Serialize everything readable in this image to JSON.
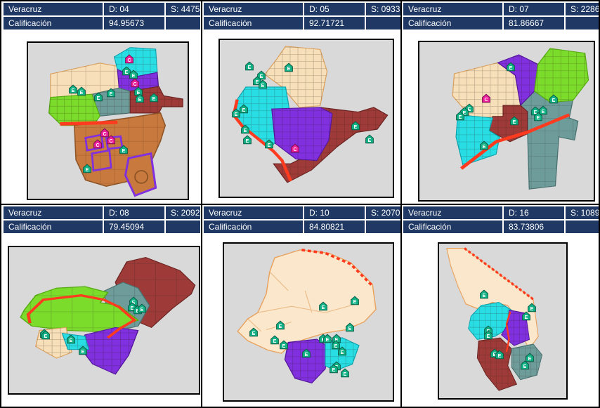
{
  "colors": {
    "header_bg": "#1F3864",
    "header_text": "#FFFFFF",
    "map_bg": "#D9D9D9",
    "district_wheat": "#F6DFB9",
    "district_cyan": "#28DEE4",
    "district_purple": "#8030DE",
    "district_maroon": "#9E3B38",
    "district_tealgray": "#6E9C9B",
    "district_green": "#7CDC2C",
    "district_brown": "#C7793E",
    "boundary_red": "#FF3B1F",
    "marker_e": "#13B286",
    "marker_c": "#EC1F9B"
  },
  "marker_styles": {
    "E": {
      "fill": "#13B286",
      "stroke": "#0B5F47"
    },
    "C": {
      "fill": "#EC1F9B",
      "stroke": "#7C0F52"
    }
  },
  "panels": [
    {
      "city": "Veracruz",
      "district": "D: 04",
      "section": "S: 4475",
      "score_label": "Calificación",
      "score": "94.95673",
      "markers": [
        {
          "t": "C",
          "x": 63.6,
          "y": 11
        },
        {
          "t": "E",
          "x": 61.5,
          "y": 18.5
        },
        {
          "t": "E",
          "x": 66,
          "y": 20.6
        },
        {
          "t": "C",
          "x": 67,
          "y": 26
        },
        {
          "t": "E",
          "x": 69,
          "y": 31.6
        },
        {
          "t": "E",
          "x": 28.4,
          "y": 30
        },
        {
          "t": "E",
          "x": 33.5,
          "y": 31.6
        },
        {
          "t": "E",
          "x": 44,
          "y": 35
        },
        {
          "t": "E",
          "x": 52,
          "y": 32.4
        },
        {
          "t": "E",
          "x": 70,
          "y": 36
        },
        {
          "t": "E",
          "x": 79,
          "y": 35.5
        },
        {
          "t": "C",
          "x": 48,
          "y": 58.3
        },
        {
          "t": "C",
          "x": 52,
          "y": 62.7
        },
        {
          "t": "C",
          "x": 43.7,
          "y": 65.4
        },
        {
          "t": "E",
          "x": 60,
          "y": 68.9
        },
        {
          "t": "E",
          "x": 37,
          "y": 81
        }
      ]
    },
    {
      "city": "Veracruz",
      "district": "D: 05",
      "section": "S: 0933",
      "score_label": "Calificación",
      "score": "92.71721",
      "markers": [
        {
          "t": "E",
          "x": 17,
          "y": 17
        },
        {
          "t": "E",
          "x": 40,
          "y": 18
        },
        {
          "t": "E",
          "x": 24,
          "y": 23
        },
        {
          "t": "E",
          "x": 21.7,
          "y": 26.3
        },
        {
          "t": "E",
          "x": 24.9,
          "y": 28.5
        },
        {
          "t": "E",
          "x": 13.7,
          "y": 44.3
        },
        {
          "t": "E",
          "x": 9.2,
          "y": 47
        },
        {
          "t": "E",
          "x": 14.5,
          "y": 57.5
        },
        {
          "t": "E",
          "x": 16,
          "y": 64
        },
        {
          "t": "E",
          "x": 28.5,
          "y": 67
        },
        {
          "t": "C",
          "x": 43.4,
          "y": 69.3
        },
        {
          "t": "E",
          "x": 78.3,
          "y": 55.3
        },
        {
          "t": "E",
          "x": 86.7,
          "y": 63.6
        }
      ]
    },
    {
      "city": "Veracruz",
      "district": "D: 07",
      "section": "S: 2286",
      "score_label": "Calificación",
      "score": "81.86667",
      "markers": [
        {
          "t": "E",
          "x": 52.4,
          "y": 15.8
        },
        {
          "t": "C",
          "x": 38.4,
          "y": 36
        },
        {
          "t": "E",
          "x": 28.8,
          "y": 42.1
        },
        {
          "t": "E",
          "x": 26,
          "y": 44.3
        },
        {
          "t": "E",
          "x": 23.2,
          "y": 46.9
        },
        {
          "t": "E",
          "x": 66.4,
          "y": 43.9
        },
        {
          "t": "E",
          "x": 70.8,
          "y": 43.4
        },
        {
          "t": "E",
          "x": 77.2,
          "y": 36.4
        },
        {
          "t": "E",
          "x": 68,
          "y": 47.4
        },
        {
          "t": "E",
          "x": 54.4,
          "y": 50.4
        },
        {
          "t": "E",
          "x": 37.2,
          "y": 65.8
        }
      ]
    },
    {
      "city": "Veracruz",
      "district": "D: 08",
      "section": "S: 2092",
      "score_label": "Calificación",
      "score": "79.45094",
      "markers": [
        {
          "t": "E",
          "x": 65.6,
          "y": 37.6
        },
        {
          "t": "E",
          "x": 64.9,
          "y": 41.3
        },
        {
          "t": "E",
          "x": 67.8,
          "y": 43.1
        },
        {
          "t": "E",
          "x": 69.9,
          "y": 42.2
        },
        {
          "t": "E",
          "x": 18.5,
          "y": 59.6
        },
        {
          "t": "E",
          "x": 19.2,
          "y": 60.6
        },
        {
          "t": "E",
          "x": 32.6,
          "y": 63.3
        },
        {
          "t": "E",
          "x": 38.8,
          "y": 71.1
        }
      ]
    },
    {
      "city": "Veracruz",
      "district": "D: 10",
      "section": "S: 2070",
      "score_label": "Calificación",
      "score": "84.80821",
      "markers": [
        {
          "t": "E",
          "x": 58.8,
          "y": 40.5
        },
        {
          "t": "E",
          "x": 77.6,
          "y": 36.6
        },
        {
          "t": "E",
          "x": 33.5,
          "y": 52.6
        },
        {
          "t": "E",
          "x": 17.6,
          "y": 56.9
        },
        {
          "t": "E",
          "x": 29.8,
          "y": 62.1
        },
        {
          "t": "E",
          "x": 35.5,
          "y": 65.1
        },
        {
          "t": "E",
          "x": 58.8,
          "y": 60.8
        },
        {
          "t": "E",
          "x": 61.2,
          "y": 60.8
        },
        {
          "t": "E",
          "x": 66.5,
          "y": 61.2
        },
        {
          "t": "E",
          "x": 66.1,
          "y": 65.1
        },
        {
          "t": "E",
          "x": 74.7,
          "y": 53.9
        },
        {
          "t": "E",
          "x": 48.6,
          "y": 70.3
        },
        {
          "t": "E",
          "x": 70.2,
          "y": 69
        },
        {
          "t": "E",
          "x": 66.5,
          "y": 78.4
        },
        {
          "t": "E",
          "x": 64.9,
          "y": 80.2
        },
        {
          "t": "E",
          "x": 71.8,
          "y": 82.8
        }
      ]
    },
    {
      "city": "Veracruz",
      "district": "D: 16",
      "section": "S: 1089",
      "score_label": "Calificación",
      "score": "83.73806",
      "markers": [
        {
          "t": "E",
          "x": 35.1,
          "y": 33
        },
        {
          "t": "E",
          "x": 73,
          "y": 42
        },
        {
          "t": "E",
          "x": 68.6,
          "y": 47.3
        },
        {
          "t": "E",
          "x": 38.4,
          "y": 56.3
        },
        {
          "t": "E",
          "x": 38.9,
          "y": 59.4
        },
        {
          "t": "E",
          "x": 43.8,
          "y": 71.4
        },
        {
          "t": "E",
          "x": 47.6,
          "y": 72.3
        },
        {
          "t": "E",
          "x": 71.4,
          "y": 74.1
        },
        {
          "t": "E",
          "x": 67.6,
          "y": 79
        }
      ]
    }
  ]
}
